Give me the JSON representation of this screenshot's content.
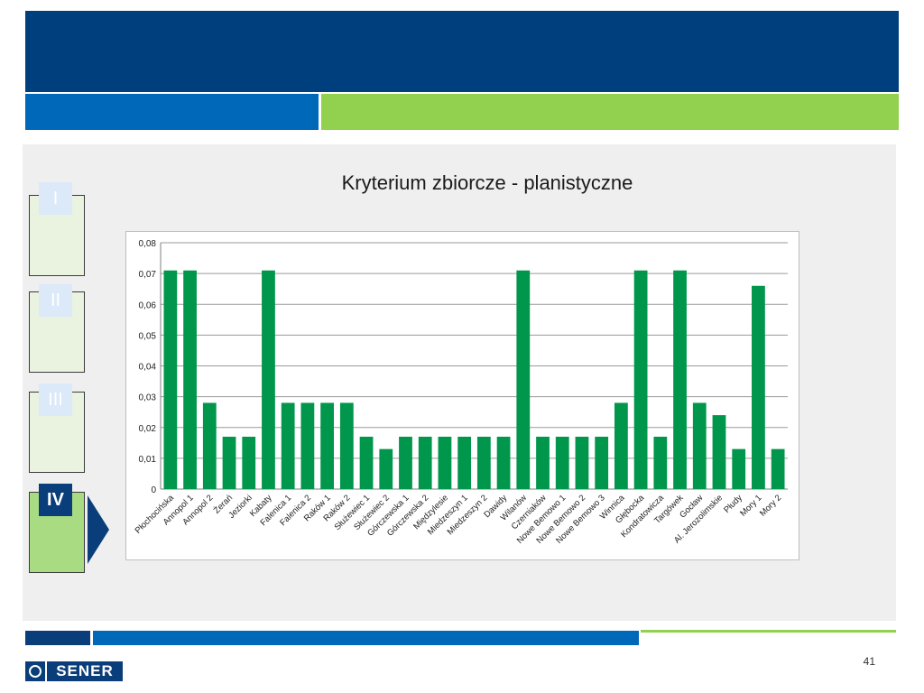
{
  "slide": {
    "title": "Kryterium zbiorcze - planistyczne",
    "page_number": "41"
  },
  "stages": [
    {
      "label": "I",
      "active": false
    },
    {
      "label": "II",
      "active": false
    },
    {
      "label": "III",
      "active": false
    },
    {
      "label": "IV",
      "active": true
    }
  ],
  "logo": {
    "text": "SENER"
  },
  "colors": {
    "header_navy": "#003f7d",
    "header_blue": "#0068b8",
    "accent_green": "#92d050",
    "bar_green": "#00964b"
  },
  "chart_data": {
    "type": "bar",
    "title": "",
    "xlabel": "",
    "ylabel": "",
    "ylim": [
      0,
      0.08
    ],
    "yticks": [
      "0",
      "0,01",
      "0,02",
      "0,03",
      "0,04",
      "0,05",
      "0,06",
      "0,07",
      "0,08"
    ],
    "grid": true,
    "categories": [
      "Płochocińska",
      "Annopol 1",
      "Annopol 2",
      "Żerań",
      "Jeziorki",
      "Kabaty",
      "Falenica 1",
      "Falenica 2",
      "Raków 1",
      "Raków 2",
      "Służewiec 1",
      "Służewiec 2",
      "Górczewska 1",
      "Górczewska 2",
      "Międzylesie",
      "Miedzeszyn 1",
      "Miedzeszyn 2",
      "Dawidy",
      "Wilanów",
      "Czerniaków",
      "Nowe Bemowo 1",
      "Nowe Bemowo 2",
      "Nowe Bemowo 3",
      "Winnica",
      "Głębocka",
      "Kondratowicza",
      "Targówek",
      "Gocław",
      "Al. Jerozolimskie",
      "Płudy",
      "Mory 1",
      "Mory 2"
    ],
    "values": [
      0.071,
      0.071,
      0.028,
      0.017,
      0.017,
      0.071,
      0.028,
      0.028,
      0.028,
      0.028,
      0.017,
      0.013,
      0.017,
      0.017,
      0.017,
      0.017,
      0.017,
      0.017,
      0.071,
      0.017,
      0.017,
      0.017,
      0.017,
      0.028,
      0.071,
      0.017,
      0.071,
      0.028,
      0.024,
      0.013,
      0.066,
      0.013
    ]
  }
}
